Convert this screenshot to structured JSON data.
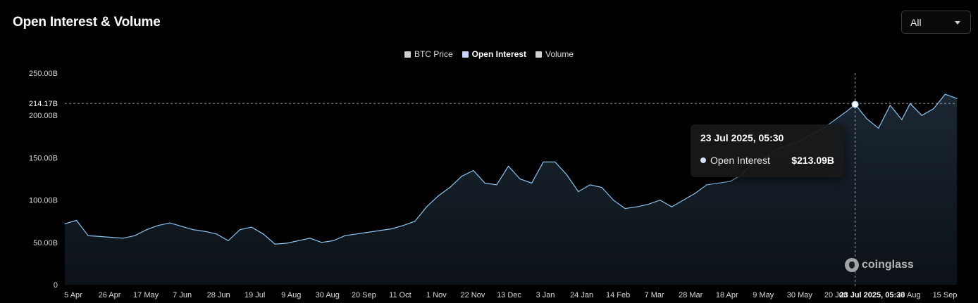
{
  "header": {
    "title": "Open Interest & Volume",
    "range_select": {
      "value": "All"
    }
  },
  "legend": [
    {
      "label": "BTC Price",
      "color": "#cfcfcf",
      "active": false
    },
    {
      "label": "Open Interest",
      "color": "#c6d4f5",
      "active": true
    },
    {
      "label": "Volume",
      "color": "#cfcfcf",
      "active": false
    }
  ],
  "tooltip": {
    "date": "23 Jul 2025, 05:30",
    "series_label": "Open Interest",
    "value": "$213.09B",
    "dot_color": "#d6e0f8"
  },
  "crosshair": {
    "x_label": "23 Jul 2025, 05:30",
    "y_label": "214.17B",
    "y_value": 214.17
  },
  "watermark": {
    "text": "coinglass"
  },
  "colors": {
    "line": "#8ec5f0",
    "area_top": "#1b2733",
    "area_bottom": "#0b1116",
    "grid_text": "#d8d8d8"
  },
  "chart_data": {
    "type": "area",
    "title": "Open Interest & Volume",
    "series": [
      {
        "name": "Open Interest",
        "x": [
          "2024-04-05",
          "2024-04-12",
          "2024-04-19",
          "2024-04-26",
          "2024-05-03",
          "2024-05-10",
          "2024-05-17",
          "2024-05-24",
          "2024-05-31",
          "2024-06-07",
          "2024-06-14",
          "2024-06-21",
          "2024-06-28",
          "2024-07-05",
          "2024-07-12",
          "2024-07-19",
          "2024-07-26",
          "2024-08-02",
          "2024-08-09",
          "2024-08-16",
          "2024-08-23",
          "2024-08-30",
          "2024-09-06",
          "2024-09-13",
          "2024-09-20",
          "2024-09-27",
          "2024-10-04",
          "2024-10-11",
          "2024-10-18",
          "2024-10-25",
          "2024-11-01",
          "2024-11-08",
          "2024-11-15",
          "2024-11-22",
          "2024-11-29",
          "2024-12-06",
          "2024-12-13",
          "2024-12-20",
          "2024-12-27",
          "2025-01-03",
          "2025-01-10",
          "2025-01-17",
          "2025-01-24",
          "2025-01-31",
          "2025-02-07",
          "2025-02-14",
          "2025-02-21",
          "2025-02-28",
          "2025-03-07",
          "2025-03-14",
          "2025-03-21",
          "2025-03-28",
          "2025-04-04",
          "2025-04-11",
          "2025-04-18",
          "2025-04-25",
          "2025-05-02",
          "2025-05-09",
          "2025-05-16",
          "2025-05-23",
          "2025-05-30",
          "2025-06-06",
          "2025-06-13",
          "2025-06-20",
          "2025-06-27",
          "2025-07-04",
          "2025-07-11",
          "2025-07-18",
          "2025-07-23",
          "2025-07-30",
          "2025-08-06",
          "2025-08-13",
          "2025-08-20",
          "2025-08-25",
          "2025-09-01",
          "2025-09-08",
          "2025-09-15",
          "2025-09-22"
        ],
        "values": [
          72,
          76,
          58,
          57,
          56,
          55,
          58,
          65,
          70,
          73,
          69,
          65,
          63,
          60,
          52,
          65,
          68,
          60,
          48,
          49,
          52,
          55,
          50,
          52,
          58,
          60,
          62,
          64,
          66,
          70,
          75,
          92,
          105,
          115,
          128,
          135,
          120,
          118,
          140,
          125,
          120,
          145,
          145,
          130,
          110,
          118,
          115,
          100,
          90,
          92,
          95,
          100,
          92,
          100,
          108,
          118,
          120,
          122,
          130,
          145,
          150,
          160,
          165,
          170,
          178,
          185,
          195,
          205,
          213.09,
          196,
          185,
          212,
          195,
          214,
          200,
          208,
          225,
          220
        ]
      }
    ],
    "xlabel": "",
    "ylabel": "",
    "x_tick_labels": [
      "5 Apr",
      "26 Apr",
      "17 May",
      "7 Jun",
      "28 Jun",
      "19 Jul",
      "9 Aug",
      "30 Aug",
      "20 Sep",
      "11 Oct",
      "1 Nov",
      "22 Nov",
      "13 Dec",
      "3 Jan",
      "24 Jan",
      "14 Feb",
      "7 Mar",
      "28 Mar",
      "18 Apr",
      "9 May",
      "30 May",
      "20 Jun",
      "23 Jul 2025, 05:30",
      "25 Aug",
      "15 Sep"
    ],
    "y_tick_labels": [
      "250.00B",
      "200.00B",
      "150.00B",
      "100.00B",
      "50.00B",
      "0"
    ],
    "y_ticks": [
      250,
      200,
      150,
      100,
      50,
      0
    ],
    "ylim": [
      0,
      250
    ],
    "grid": false,
    "legend_position": "top-center"
  }
}
